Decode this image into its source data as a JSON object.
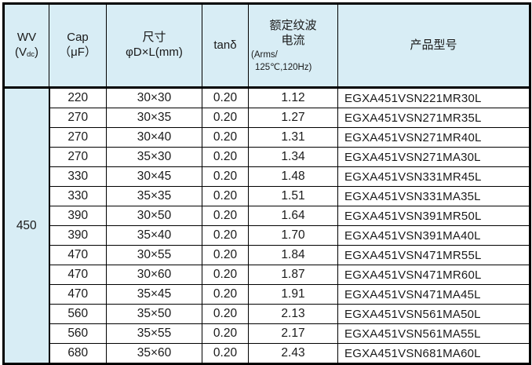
{
  "table": {
    "headers": {
      "wv": {
        "line1": "WV",
        "line2_pre": "(V",
        "line2_sub": "dc",
        "line2_post": ")"
      },
      "cap": {
        "line1": "Cap",
        "line2": "（μF）"
      },
      "size": {
        "line1": "尺寸",
        "line2": "φD×L(mm)"
      },
      "tand": "tanδ",
      "ripple": {
        "line1": "额定纹波",
        "line2": "电流",
        "line3": "(Arms/",
        "line4": "125℃,120Hz)"
      },
      "part": "产品型号"
    },
    "wv_value": "450",
    "rows": [
      {
        "cap": "220",
        "size": "30×30",
        "tand": "0.20",
        "ripple": "1.12",
        "part": "EGXA451VSN221MR30L"
      },
      {
        "cap": "270",
        "size": "30×35",
        "tand": "0.20",
        "ripple": "1.27",
        "part": "EGXA451VSN271MR35L"
      },
      {
        "cap": "270",
        "size": "30×40",
        "tand": "0.20",
        "ripple": "1.31",
        "part": "EGXA451VSN271MR40L"
      },
      {
        "cap": "270",
        "size": "35×30",
        "tand": "0.20",
        "ripple": "1.34",
        "part": "EGXA451VSN271MA30L"
      },
      {
        "cap": "330",
        "size": "30×45",
        "tand": "0.20",
        "ripple": "1.48",
        "part": "EGXA451VSN331MR45L"
      },
      {
        "cap": "330",
        "size": "35×35",
        "tand": "0.20",
        "ripple": "1.51",
        "part": "EGXA451VSN331MA35L"
      },
      {
        "cap": "390",
        "size": "30×50",
        "tand": "0.20",
        "ripple": "1.64",
        "part": "EGXA451VSN391MR50L"
      },
      {
        "cap": "390",
        "size": "35×40",
        "tand": "0.20",
        "ripple": "1.70",
        "part": "EGXA451VSN391MA40L"
      },
      {
        "cap": "470",
        "size": "30×55",
        "tand": "0.20",
        "ripple": "1.84",
        "part": "EGXA451VSN471MR55L"
      },
      {
        "cap": "470",
        "size": "30×60",
        "tand": "0.20",
        "ripple": "1.87",
        "part": "EGXA451VSN471MR60L"
      },
      {
        "cap": "470",
        "size": "35×45",
        "tand": "0.20",
        "ripple": "1.91",
        "part": "EGXA451VSN471MA45L"
      },
      {
        "cap": "560",
        "size": "35×50",
        "tand": "0.20",
        "ripple": "2.13",
        "part": "EGXA451VSN561MA50L"
      },
      {
        "cap": "560",
        "size": "35×55",
        "tand": "0.20",
        "ripple": "2.17",
        "part": "EGXA451VSN561MA55L"
      },
      {
        "cap": "680",
        "size": "35×60",
        "tand": "0.20",
        "ripple": "2.43",
        "part": "EGXA451VSN681MA60L"
      }
    ],
    "colors": {
      "header_bg": "#d8edf5",
      "border": "#000000",
      "text": "#1a1a1a"
    }
  }
}
